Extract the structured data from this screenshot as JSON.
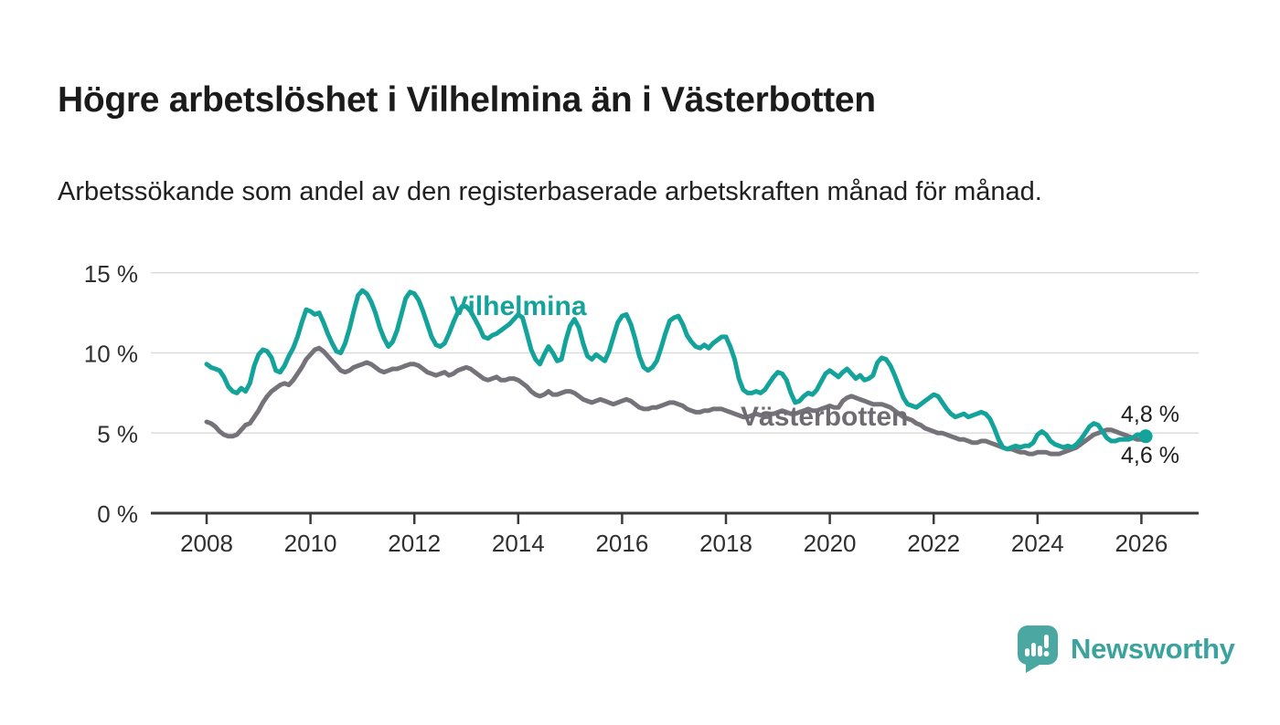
{
  "header": {
    "title": "Högre arbetslöshet i Vilhelmina än i Västerbotten",
    "subtitle": "Arbetssökande som andel av den registerbaserade arbetskraften månad för månad."
  },
  "chart_data": {
    "type": "line",
    "title": "Högre arbetslöshet i Vilhelmina än i Västerbotten",
    "subtitle": "Arbetssökande som andel av den registerbaserade arbetskraften månad för månad.",
    "x_unit": "month",
    "x_start": "2008-01",
    "x_end": "2026-02",
    "x_tick_labels": [
      "2008",
      "2010",
      "2012",
      "2014",
      "2016",
      "2018",
      "2020",
      "2022",
      "2024",
      "2026"
    ],
    "y_ticks": [
      0,
      5,
      10,
      15
    ],
    "y_tick_labels": [
      "0 %",
      "5 %",
      "10 %",
      "15 %"
    ],
    "ylim": [
      0,
      15.8
    ],
    "grid": true,
    "legend": "inline-labels",
    "series": [
      {
        "name": "Vilhelmina",
        "color": "#13a39a",
        "end_label": "4,8 %",
        "end_value": 4.8,
        "values": [
          9.3,
          9.1,
          9.0,
          8.9,
          8.5,
          7.9,
          7.6,
          7.5,
          7.8,
          7.6,
          8.1,
          9.2,
          9.9,
          10.2,
          10.1,
          9.7,
          8.9,
          8.8,
          9.2,
          9.8,
          10.3,
          11.0,
          11.9,
          12.7,
          12.6,
          12.4,
          12.5,
          11.9,
          11.2,
          10.6,
          10.1,
          10.0,
          10.6,
          11.5,
          12.6,
          13.6,
          13.9,
          13.7,
          13.2,
          12.5,
          11.6,
          10.9,
          10.4,
          10.7,
          11.4,
          12.4,
          13.4,
          13.8,
          13.7,
          13.3,
          12.6,
          11.8,
          11.0,
          10.5,
          10.4,
          10.6,
          11.2,
          11.9,
          12.5,
          12.9,
          12.9,
          12.6,
          12.1,
          11.6,
          11.0,
          10.9,
          11.1,
          11.2,
          11.4,
          11.6,
          11.8,
          12.1,
          12.4,
          12.2,
          11.2,
          10.2,
          9.6,
          9.3,
          9.9,
          10.4,
          10.0,
          9.5,
          9.6,
          10.8,
          11.7,
          12.1,
          11.6,
          10.6,
          9.8,
          9.6,
          9.9,
          9.7,
          9.5,
          10.1,
          11.0,
          11.9,
          12.3,
          12.4,
          11.8,
          10.9,
          9.8,
          9.1,
          8.9,
          9.1,
          9.5,
          10.3,
          11.2,
          12.0,
          12.2,
          12.3,
          11.8,
          11.1,
          10.7,
          10.4,
          10.3,
          10.5,
          10.3,
          10.6,
          10.8,
          11.0,
          11.0,
          10.4,
          9.6,
          8.4,
          7.7,
          7.5,
          7.5,
          7.6,
          7.5,
          7.7,
          8.1,
          8.5,
          8.8,
          8.7,
          8.3,
          7.5,
          6.9,
          7.0,
          7.3,
          7.5,
          7.4,
          7.7,
          8.2,
          8.7,
          8.9,
          8.7,
          8.5,
          8.8,
          9.0,
          8.7,
          8.4,
          8.6,
          8.3,
          8.4,
          8.6,
          9.4,
          9.7,
          9.6,
          9.2,
          8.6,
          7.9,
          7.2,
          6.8,
          6.7,
          6.6,
          6.8,
          7.0,
          7.2,
          7.4,
          7.3,
          6.9,
          6.5,
          6.2,
          6.0,
          6.1,
          6.2,
          6.0,
          6.1,
          6.2,
          6.3,
          6.2,
          5.9,
          5.3,
          4.6,
          4.1,
          4.0,
          4.1,
          4.2,
          4.1,
          4.2,
          4.2,
          4.4,
          4.9,
          5.1,
          4.9,
          4.5,
          4.3,
          4.2,
          4.1,
          4.2,
          4.1,
          4.3,
          4.6,
          5.0,
          5.4,
          5.6,
          5.5,
          5.1,
          4.7,
          4.5,
          4.5,
          4.6,
          4.6,
          4.6,
          4.7,
          4.9,
          4.9,
          4.8
        ]
      },
      {
        "name": "Västerbotten",
        "color": "#757379",
        "end_label": "4,6 %",
        "end_value": 4.6,
        "values": [
          5.7,
          5.6,
          5.4,
          5.1,
          4.9,
          4.8,
          4.8,
          4.9,
          5.2,
          5.5,
          5.6,
          6.0,
          6.4,
          6.9,
          7.3,
          7.6,
          7.8,
          8.0,
          8.1,
          8.0,
          8.3,
          8.7,
          9.1,
          9.6,
          9.9,
          10.2,
          10.3,
          10.1,
          9.8,
          9.5,
          9.2,
          8.9,
          8.8,
          8.9,
          9.1,
          9.2,
          9.3,
          9.4,
          9.3,
          9.1,
          8.9,
          8.8,
          8.9,
          9.0,
          9.0,
          9.1,
          9.2,
          9.3,
          9.3,
          9.2,
          9.0,
          8.8,
          8.7,
          8.6,
          8.7,
          8.8,
          8.6,
          8.7,
          8.9,
          9.0,
          9.1,
          9.0,
          8.8,
          8.6,
          8.4,
          8.3,
          8.4,
          8.5,
          8.3,
          8.3,
          8.4,
          8.4,
          8.3,
          8.1,
          7.9,
          7.6,
          7.4,
          7.3,
          7.4,
          7.6,
          7.4,
          7.4,
          7.5,
          7.6,
          7.6,
          7.5,
          7.3,
          7.1,
          7.0,
          6.9,
          7.0,
          7.1,
          7.0,
          6.9,
          6.8,
          6.9,
          7.0,
          7.1,
          7.0,
          6.8,
          6.6,
          6.5,
          6.5,
          6.6,
          6.6,
          6.7,
          6.8,
          6.9,
          6.9,
          6.8,
          6.7,
          6.5,
          6.4,
          6.3,
          6.3,
          6.4,
          6.4,
          6.5,
          6.5,
          6.5,
          6.4,
          6.3,
          6.2,
          6.1,
          6.0,
          6.0,
          6.1,
          6.2,
          6.1,
          6.1,
          6.2,
          6.2,
          6.3,
          6.4,
          6.3,
          6.2,
          6.2,
          6.3,
          6.4,
          6.5,
          6.4,
          6.4,
          6.5,
          6.6,
          6.7,
          6.6,
          6.6,
          7.0,
          7.2,
          7.3,
          7.2,
          7.1,
          7.0,
          6.9,
          6.8,
          6.8,
          6.8,
          6.7,
          6.6,
          6.4,
          6.2,
          6.0,
          5.9,
          5.8,
          5.6,
          5.5,
          5.3,
          5.2,
          5.1,
          5.0,
          5.0,
          4.9,
          4.8,
          4.7,
          4.6,
          4.6,
          4.5,
          4.4,
          4.4,
          4.5,
          4.5,
          4.4,
          4.3,
          4.2,
          4.1,
          4.0,
          4.0,
          3.9,
          3.8,
          3.8,
          3.7,
          3.7,
          3.8,
          3.8,
          3.8,
          3.7,
          3.7,
          3.7,
          3.8,
          3.9,
          4.0,
          4.1,
          4.3,
          4.5,
          4.7,
          4.9,
          5.0,
          5.1,
          5.2,
          5.2,
          5.1,
          5.0,
          4.9,
          4.8,
          4.7,
          4.6,
          4.6,
          4.6
        ]
      }
    ],
    "style": {
      "grid_color": "#dcdcdc",
      "axis_color": "#3a3a3a",
      "tick_text_color": "#2f2f2f"
    }
  },
  "footer": {
    "brand": "Newsworthy",
    "logo_icon": "bar-chart-speech-bubble-icon"
  }
}
